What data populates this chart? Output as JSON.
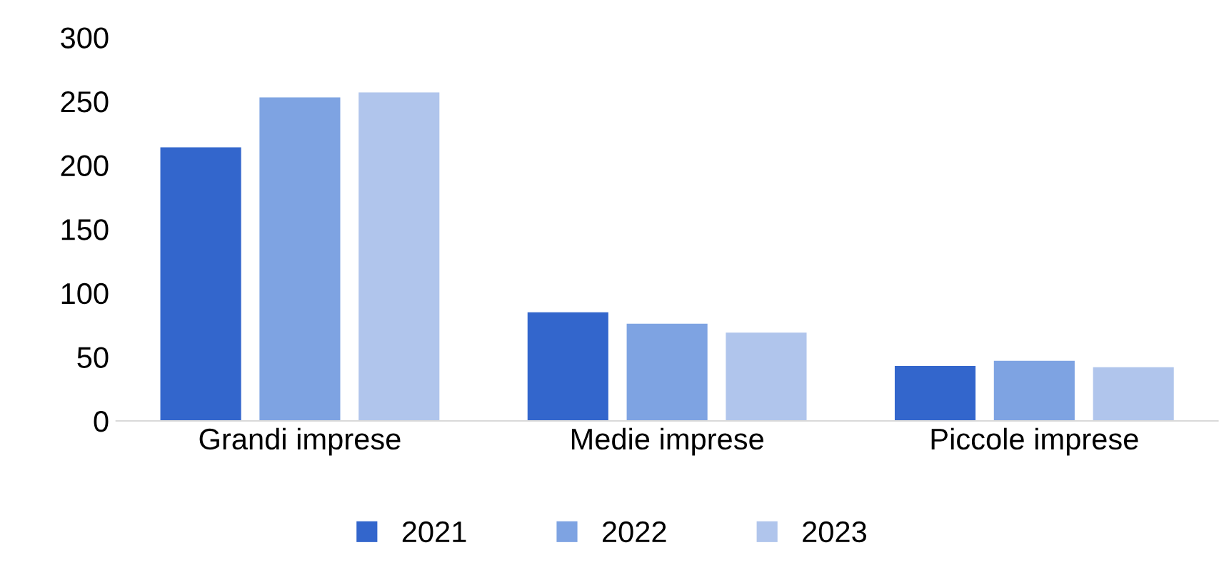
{
  "chart_data": {
    "type": "bar",
    "categories": [
      "Grandi imprese",
      "Medie imprese",
      "Piccole imprese"
    ],
    "series": [
      {
        "name": "2021",
        "color": "#3366cc",
        "values": [
          214,
          85,
          43
        ]
      },
      {
        "name": "2022",
        "color": "#7ea3e2",
        "values": [
          253,
          76,
          47
        ]
      },
      {
        "name": "2023",
        "color": "#b0c5ec",
        "values": [
          257,
          69,
          42
        ]
      }
    ],
    "ylim": [
      0,
      300
    ],
    "yticks": [
      0,
      50,
      100,
      150,
      200,
      250,
      300
    ],
    "grid": false,
    "legend": "bottom"
  }
}
